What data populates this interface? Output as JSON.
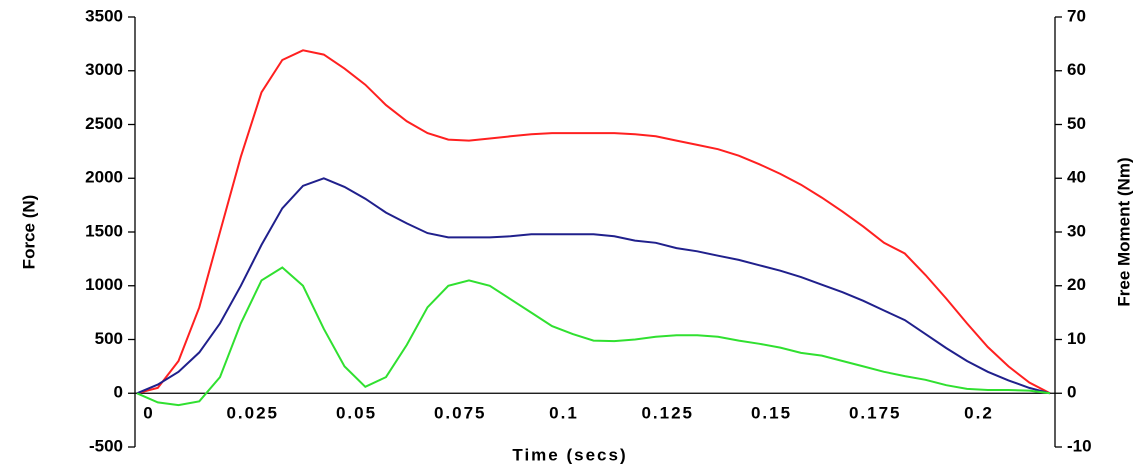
{
  "chart_data": {
    "type": "line",
    "x_label": "Time (secs)",
    "y_label": "Force (N)",
    "y2_label": "Free Moment (Nm)",
    "x": [
      0,
      0.005,
      0.01,
      0.015,
      0.02,
      0.025,
      0.03,
      0.035,
      0.04,
      0.045,
      0.05,
      0.055,
      0.06,
      0.065,
      0.07,
      0.075,
      0.08,
      0.085,
      0.09,
      0.095,
      0.1,
      0.105,
      0.11,
      0.115,
      0.12,
      0.125,
      0.13,
      0.135,
      0.14,
      0.145,
      0.15,
      0.155,
      0.16,
      0.165,
      0.17,
      0.175,
      0.18,
      0.185,
      0.19,
      0.195,
      0.2,
      0.205,
      0.21,
      0.215,
      0.22
    ],
    "series": [
      {
        "color": "#ff2020",
        "values": [
          0,
          50,
          300,
          800,
          1500,
          2200,
          2800,
          3100,
          3190,
          3150,
          3020,
          2870,
          2680,
          2530,
          2420,
          2360,
          2350,
          2370,
          2390,
          2410,
          2420,
          2420,
          2420,
          2420,
          2410,
          2390,
          2350,
          2310,
          2270,
          2210,
          2130,
          2040,
          1940,
          1820,
          1690,
          1550,
          1400,
          1300,
          1100,
          880,
          650,
          430,
          250,
          100,
          0
        ]
      },
      {
        "color": "#20208c",
        "values": [
          0,
          80,
          200,
          380,
          650,
          1000,
          1380,
          1720,
          1930,
          2000,
          1920,
          1810,
          1680,
          1580,
          1490,
          1450,
          1450,
          1450,
          1460,
          1480,
          1480,
          1480,
          1480,
          1460,
          1420,
          1400,
          1350,
          1320,
          1280,
          1240,
          1190,
          1140,
          1080,
          1010,
          940,
          860,
          770,
          680,
          550,
          420,
          300,
          200,
          120,
          50,
          0
        ]
      },
      {
        "color": "#30e030",
        "axis": "y2",
        "values": [
          0,
          -1.7,
          -2.2,
          -1.5,
          3,
          13,
          21,
          23.4,
          20,
          12,
          5,
          1.2,
          3,
          9,
          16,
          20,
          21,
          20,
          17.5,
          15,
          12.5,
          11,
          9.8,
          9.7,
          10,
          10.5,
          10.8,
          10.8,
          10.5,
          9.8,
          9.2,
          8.5,
          7.5,
          7,
          6,
          5,
          4,
          3.2,
          2.5,
          1.5,
          0.8,
          0.6,
          0.6,
          0.5,
          0
        ]
      }
    ],
    "xlim": [
      0,
      0.22
    ],
    "xticks": [
      0,
      0.025,
      0.05,
      0.075,
      0.1,
      0.125,
      0.15,
      0.175,
      0.2
    ],
    "ylim": [
      -500,
      3500
    ],
    "yticks": [
      -500,
      0,
      500,
      1000,
      1500,
      2000,
      2500,
      3000,
      3500
    ],
    "y2lim": [
      -10,
      70
    ],
    "y2ticks": [
      -10,
      0,
      10,
      20,
      30,
      40,
      50,
      60,
      70
    ]
  }
}
